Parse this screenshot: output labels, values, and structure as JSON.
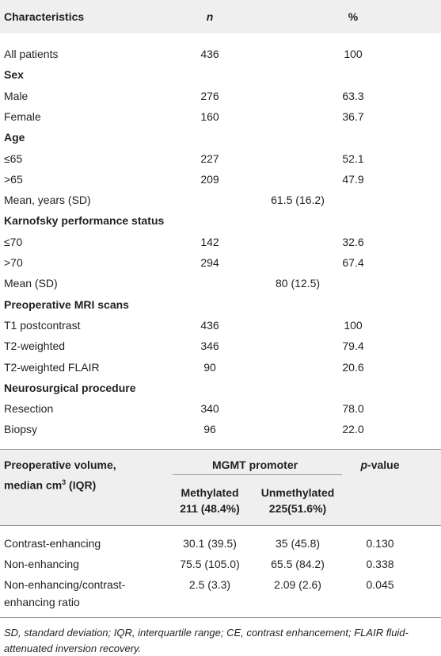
{
  "table1": {
    "header": [
      "Characteristics",
      "n",
      "%"
    ],
    "rows": [
      {
        "label": "All patients",
        "n": "436",
        "pct": "100"
      },
      {
        "section": "Sex"
      },
      {
        "label": "Male",
        "n": "276",
        "pct": "63.3"
      },
      {
        "label": "Female",
        "n": "160",
        "pct": "36.7"
      },
      {
        "section": "Age"
      },
      {
        "label": "≤65",
        "n": "227",
        "pct": "52.1"
      },
      {
        "label": ">65",
        "n": "209",
        "pct": "47.9"
      },
      {
        "label": "Mean, years (SD)",
        "value": "61.5 (16.2)"
      },
      {
        "section": "Karnofsky performance status"
      },
      {
        "label": "≤70",
        "n": "142",
        "pct": "32.6"
      },
      {
        "label": ">70",
        "n": "294",
        "pct": "67.4"
      },
      {
        "label": "Mean (SD)",
        "value": "80 (12.5)"
      },
      {
        "section": "Preoperative MRI scans"
      },
      {
        "label": "T1 postcontrast",
        "n": "436",
        "pct": "100"
      },
      {
        "label": "T2-weighted",
        "n": "346",
        "pct": "79.4"
      },
      {
        "label": "T2-weighted FLAIR",
        "n": "90",
        "pct": "20.6"
      },
      {
        "section": "Neurosurgical procedure"
      },
      {
        "label": "Resection",
        "n": "340",
        "pct": "78.0"
      },
      {
        "label": "Biopsy",
        "n": "96",
        "pct": "22.0"
      }
    ]
  },
  "table2": {
    "header": {
      "volume_line1": "Preoperative volume,",
      "volume_line2": {
        "text": "median cm",
        "sup": "3",
        "after": "(IQR)"
      },
      "group": "MGMT promoter",
      "methylated": [
        "Methylated",
        "211 (48.4%)"
      ],
      "unmethylated": [
        "Unmethylated",
        "225(51.6%)"
      ],
      "pvalue": {
        "italic": "p",
        "rest": "-value"
      }
    },
    "rows": [
      {
        "label": [
          "Contrast-enhancing"
        ],
        "methylated": "30.1 (39.5)",
        "unmethylated": "35 (45.8)",
        "p": "0.130"
      },
      {
        "label": [
          "Non-enhancing"
        ],
        "methylated": "75.5 (105.0)",
        "unmethylated": "65.5 (84.2)",
        "p": "0.338"
      },
      {
        "label": [
          "Non-enhancing/contrast-",
          "enhancing ratio"
        ],
        "methylated": "2.5 (3.3)",
        "unmethylated": "2.09 (2.6)",
        "p": "0.045"
      }
    ]
  },
  "footnote": "SD, standard deviation; IQR, interquartile range; CE, contrast enhancement; FLAIR fluid-attenuated inversion recovery."
}
